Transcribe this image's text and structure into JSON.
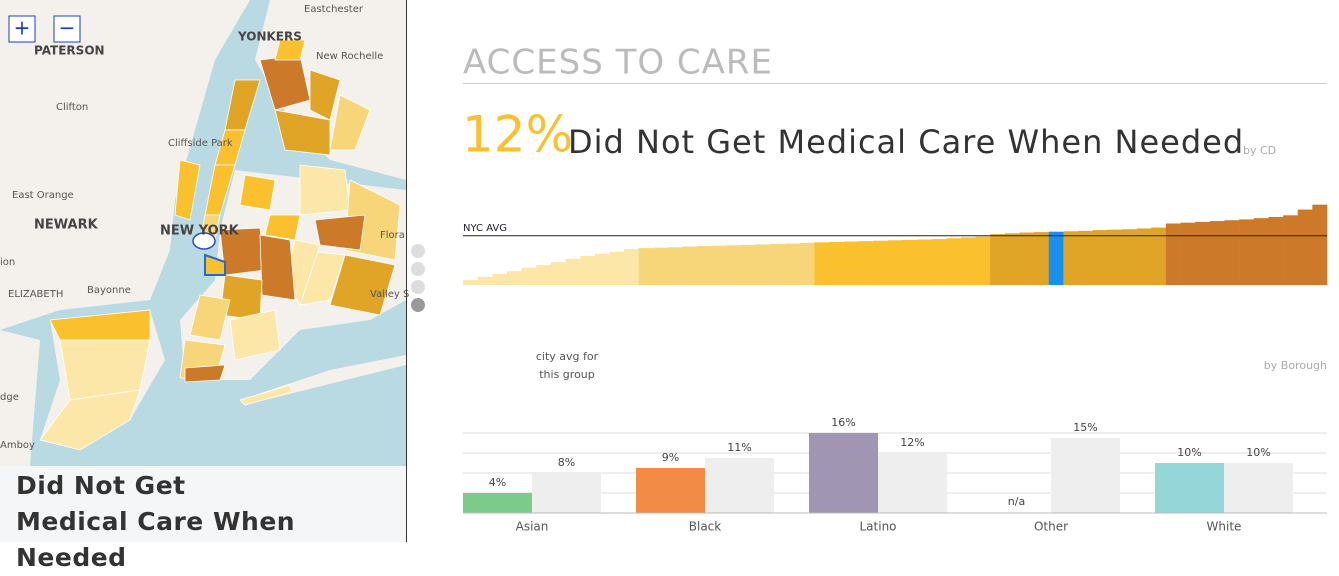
{
  "map": {
    "zoom": [
      "+",
      "−"
    ],
    "labels": [
      "Eastchester",
      "YONKERS",
      "PATERSON",
      "New Rochelle",
      "Clifton",
      "Cliffside Park",
      "East Orange",
      "NEWARK",
      "NEW YORK",
      "Flora",
      "ion",
      "ELIZABETH",
      "Bayonne",
      "Valley S",
      "dge",
      "Amboy"
    ],
    "title": "Did Not Get Medical Care When Needed"
  },
  "header": {
    "section": "ACCESS TO CARE",
    "headline_value": "12%",
    "headline_text": "Did Not Get Medical Care When Needed",
    "headline_note": "by CD"
  },
  "strip": {
    "type": "bar",
    "avg": 12,
    "avg_label": "NYC AVG",
    "ylim": [
      0,
      20
    ],
    "selected": {
      "series": 3,
      "index": 4,
      "color": "#1a90ee"
    },
    "series": [
      {
        "color": "#fde7a8",
        "values": [
          1.2,
          2,
          2.7,
          3.4,
          4.2,
          4.9,
          5.6,
          6.4,
          7.1,
          7.6,
          8.1,
          8.8
        ]
      },
      {
        "color": "#f7d67a",
        "values": [
          9,
          9.1,
          9.2,
          9.4,
          9.5,
          9.6,
          9.7,
          9.8,
          9.9,
          10,
          10.1,
          10.3
        ]
      },
      {
        "color": "#fbc02d",
        "values": [
          10.4,
          10.5,
          10.6,
          10.7,
          10.8,
          10.9,
          11,
          11.1,
          11.2,
          11.4,
          11.6,
          11.8
        ]
      },
      {
        "color": "#e0a526",
        "values": [
          12.4,
          12.6,
          12.8,
          12.9,
          13,
          13.1,
          13.2,
          13.4,
          13.5,
          13.6,
          13.8,
          14
        ]
      },
      {
        "color": "#cc7a2a",
        "values": [
          15,
          15.2,
          15.4,
          15.6,
          15.8,
          16,
          16.3,
          16.6,
          17,
          18.4,
          19.6
        ]
      }
    ]
  },
  "chart_data": {
    "type": "bar",
    "categories": [
      "Asian",
      "Black",
      "Latino",
      "Other",
      "White"
    ],
    "note": "by Borough",
    "ylim": [
      0,
      20
    ],
    "yticks": [
      0,
      4,
      8,
      12,
      16
    ],
    "grid": true,
    "series": [
      {
        "colors": [
          "#7ccb8a",
          "#f28b46",
          "#a096b3",
          "#cccccc",
          "#95d6d8"
        ],
        "values": [
          4,
          9,
          16,
          null,
          10
        ],
        "value_labels": [
          "4%",
          "9%",
          "16%",
          "n/a",
          "10%"
        ]
      },
      {
        "name": "city avg for this group",
        "color": "#eeeeee",
        "values": [
          8,
          11,
          12,
          15,
          10
        ],
        "value_labels": [
          "8%",
          "11%",
          "12%",
          "15%",
          "10%"
        ]
      }
    ]
  }
}
